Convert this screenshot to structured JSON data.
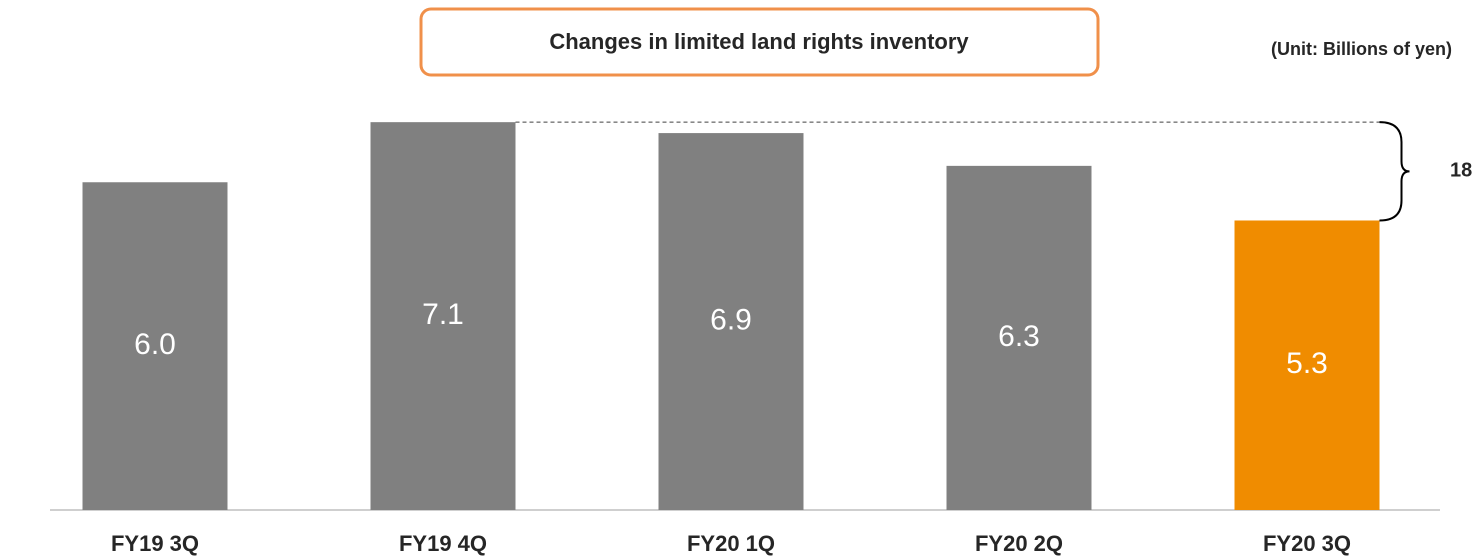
{
  "chart_data": {
    "type": "bar",
    "title": "Changes in limited land rights inventory",
    "subtitle": "(Unit: Billions of yen)",
    "categories": [
      "FY19 3Q",
      "FY19 4Q",
      "FY20 1Q",
      "FY20 2Q",
      "FY20 3Q"
    ],
    "values": [
      6.0,
      7.1,
      6.9,
      6.3,
      5.3
    ],
    "value_labels": [
      "6.0",
      "7.1",
      "6.9",
      "6.3",
      "5.3"
    ],
    "colors": [
      "#808080",
      "#808080",
      "#808080",
      "#808080",
      "#f08c00"
    ],
    "ylim": [
      0,
      8
    ],
    "annotation": "18"
  }
}
